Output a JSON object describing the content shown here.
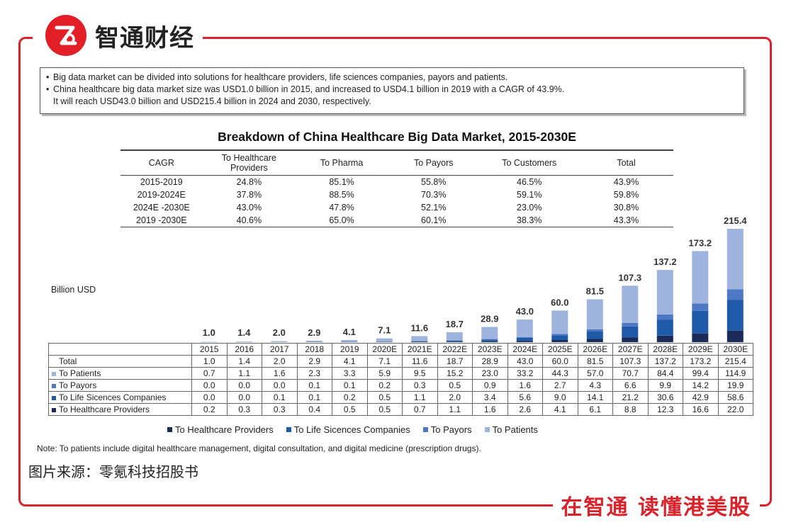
{
  "brand": {
    "name": "智通财经",
    "slogan": "在智通 读懂港美股"
  },
  "info_bullets": [
    "Big data market can be divided into solutions for healthcare providers, life sciences companies, payors and patients.",
    "China healthcare big data market size was USD1.0 billion in 2015, and increased to USD4.1 billion in 2019 with a CAGR of 43.9%.",
    "It will reach USD43.0 billion and USD215.4 billion in 2024 and 2030, respectively."
  ],
  "source_text": "图片来源：零氪科技招股书",
  "note_text": "Note: To patients include digital healthcare management, digital consultation, and digital medicine (prescription drugs).",
  "colors": {
    "brand_red": "#d8232a",
    "navy": "#1c2a5a",
    "blue": "#1f5aa8",
    "mid_blue": "#4f78c4",
    "light_blue": "#9fb3df"
  },
  "chart_data": {
    "type": "bar",
    "stacked": true,
    "title": "Breakdown of China Healthcare Big Data Market, 2015-2030E",
    "ylabel": "Billion USD",
    "xlabel": "",
    "categories": [
      "2015",
      "2016",
      "2017",
      "2018",
      "2019",
      "2020E",
      "2021E",
      "2022E",
      "2023E",
      "2024E",
      "2025E",
      "2026E",
      "2027E",
      "2028E",
      "2029E",
      "2030E"
    ],
    "totals": [
      1.0,
      1.4,
      2.0,
      2.9,
      4.1,
      7.1,
      11.6,
      18.7,
      28.9,
      43.0,
      60.0,
      81.5,
      107.3,
      137.2,
      173.2,
      215.4
    ],
    "total_labels": [
      "1.0",
      "1.4",
      "2.0",
      "2.9",
      "4.1",
      "7.1",
      "11.6",
      "18.7",
      "28.9",
      "43.0",
      "60.0",
      "81.5",
      "107.3",
      "137.2",
      "173.2",
      "215.4"
    ],
    "total_row_label": "Total",
    "series": [
      {
        "name": "To Healthcare Providers",
        "color": "#1c2a5a",
        "values": [
          0.2,
          0.3,
          0.3,
          0.4,
          0.5,
          0.5,
          0.7,
          1.1,
          1.6,
          2.6,
          4.1,
          6.1,
          8.8,
          12.3,
          16.6,
          22.0
        ],
        "labels": [
          "0.2",
          "0.3",
          "0.3",
          "0.4",
          "0.5",
          "0.5",
          "0.7",
          "1.1",
          "1.6",
          "2.6",
          "4.1",
          "6.1",
          "8.8",
          "12.3",
          "16.6",
          "22.0"
        ]
      },
      {
        "name": "To Life Sicences Companies",
        "color": "#1f5aa8",
        "values": [
          0.0,
          0.0,
          0.1,
          0.1,
          0.2,
          0.5,
          1.1,
          2.0,
          3.4,
          5.6,
          9.0,
          14.1,
          21.2,
          30.6,
          42.9,
          58.6
        ],
        "labels": [
          "0.0",
          "0.0",
          "0.1",
          "0.1",
          "0.2",
          "0.5",
          "1.1",
          "2.0",
          "3.4",
          "5.6",
          "9.0",
          "14.1",
          "21.2",
          "30.6",
          "42.9",
          "58.6"
        ]
      },
      {
        "name": "To Payors",
        "color": "#4f78c4",
        "values": [
          0.0,
          0.0,
          0.0,
          0.1,
          0.1,
          0.2,
          0.3,
          0.5,
          0.9,
          1.6,
          2.7,
          4.3,
          6.6,
          9.9,
          14.2,
          19.9
        ],
        "labels": [
          "0.0",
          "0.0",
          "0.0",
          "0.1",
          "0.1",
          "0.2",
          "0.3",
          "0.5",
          "0.9",
          "1.6",
          "2.7",
          "4.3",
          "6.6",
          "9.9",
          "14.2",
          "19.9"
        ]
      },
      {
        "name": "To Patients",
        "color": "#9fb3df",
        "values": [
          0.7,
          1.1,
          1.6,
          2.3,
          3.3,
          5.9,
          9.5,
          15.2,
          23.0,
          33.2,
          44.3,
          57.0,
          70.7,
          84.4,
          99.4,
          114.9
        ],
        "labels": [
          "0.7",
          "1.1",
          "1.6",
          "2.3",
          "3.3",
          "5.9",
          "9.5",
          "15.2",
          "23.0",
          "33.2",
          "44.3",
          "57.0",
          "70.7",
          "84.4",
          "99.4",
          "114.9"
        ]
      }
    ],
    "ylim": [
      0,
      215.4
    ],
    "cagr_table": {
      "headers": [
        "CAGR",
        "To Healthcare Providers",
        "To Pharma",
        "To Payors",
        "To Customers",
        "Total"
      ],
      "rows": [
        [
          "2015-2019",
          "24.8%",
          "85.1%",
          "55.8%",
          "46.5%",
          "43.9%"
        ],
        [
          "2019-2024E",
          "37.8%",
          "88.5%",
          "70.3%",
          "59.1%",
          "59.8%"
        ],
        [
          "2024E -2030E",
          "43.0%",
          "47.8%",
          "52.1%",
          "23.0%",
          "30.8%"
        ],
        [
          "2019 -2030E",
          "40.6%",
          "65.0%",
          "60.1%",
          "38.3%",
          "43.3%"
        ]
      ]
    }
  }
}
